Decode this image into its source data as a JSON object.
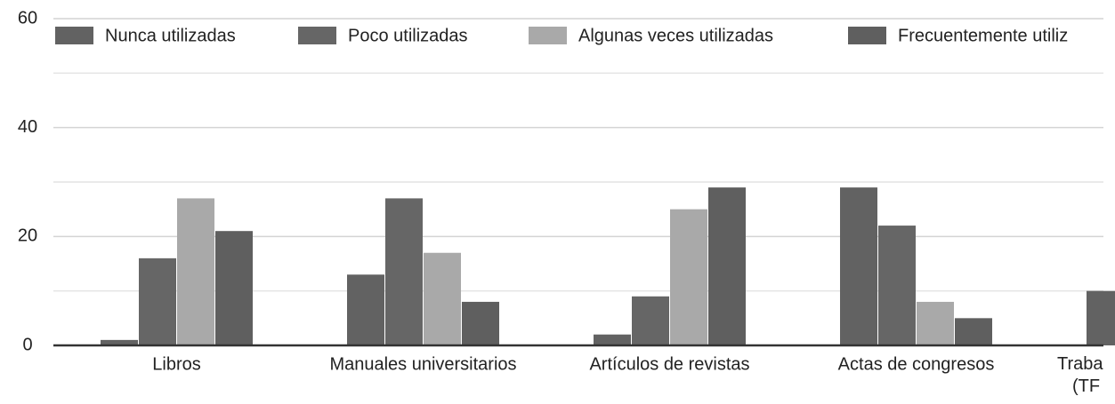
{
  "chart_data": {
    "type": "bar",
    "categories": [
      "Libros",
      "Manuales universitarios",
      "Artículos de revistas",
      "Actas de congresos",
      "Traba\n(TF"
    ],
    "series": [
      {
        "name": "Nunca utilizadas",
        "color": "#626262",
        "values": [
          1,
          13,
          2,
          29,
          10
        ]
      },
      {
        "name": "Poco utilizadas",
        "color": "#666666",
        "values": [
          16,
          27,
          9,
          22,
          null
        ]
      },
      {
        "name": "Algunas veces utilizadas",
        "color": "#a9a9a9",
        "values": [
          27,
          17,
          25,
          8,
          null
        ]
      },
      {
        "name": "Frecuentemente utiliz",
        "color": "#5f5f5f",
        "values": [
          21,
          8,
          29,
          5,
          null
        ]
      }
    ],
    "ylim": [
      0,
      60
    ],
    "yticks": [
      0,
      20,
      40,
      60
    ],
    "minor_yticks": [
      10,
      30,
      50
    ],
    "grid": true,
    "legend": "top"
  }
}
